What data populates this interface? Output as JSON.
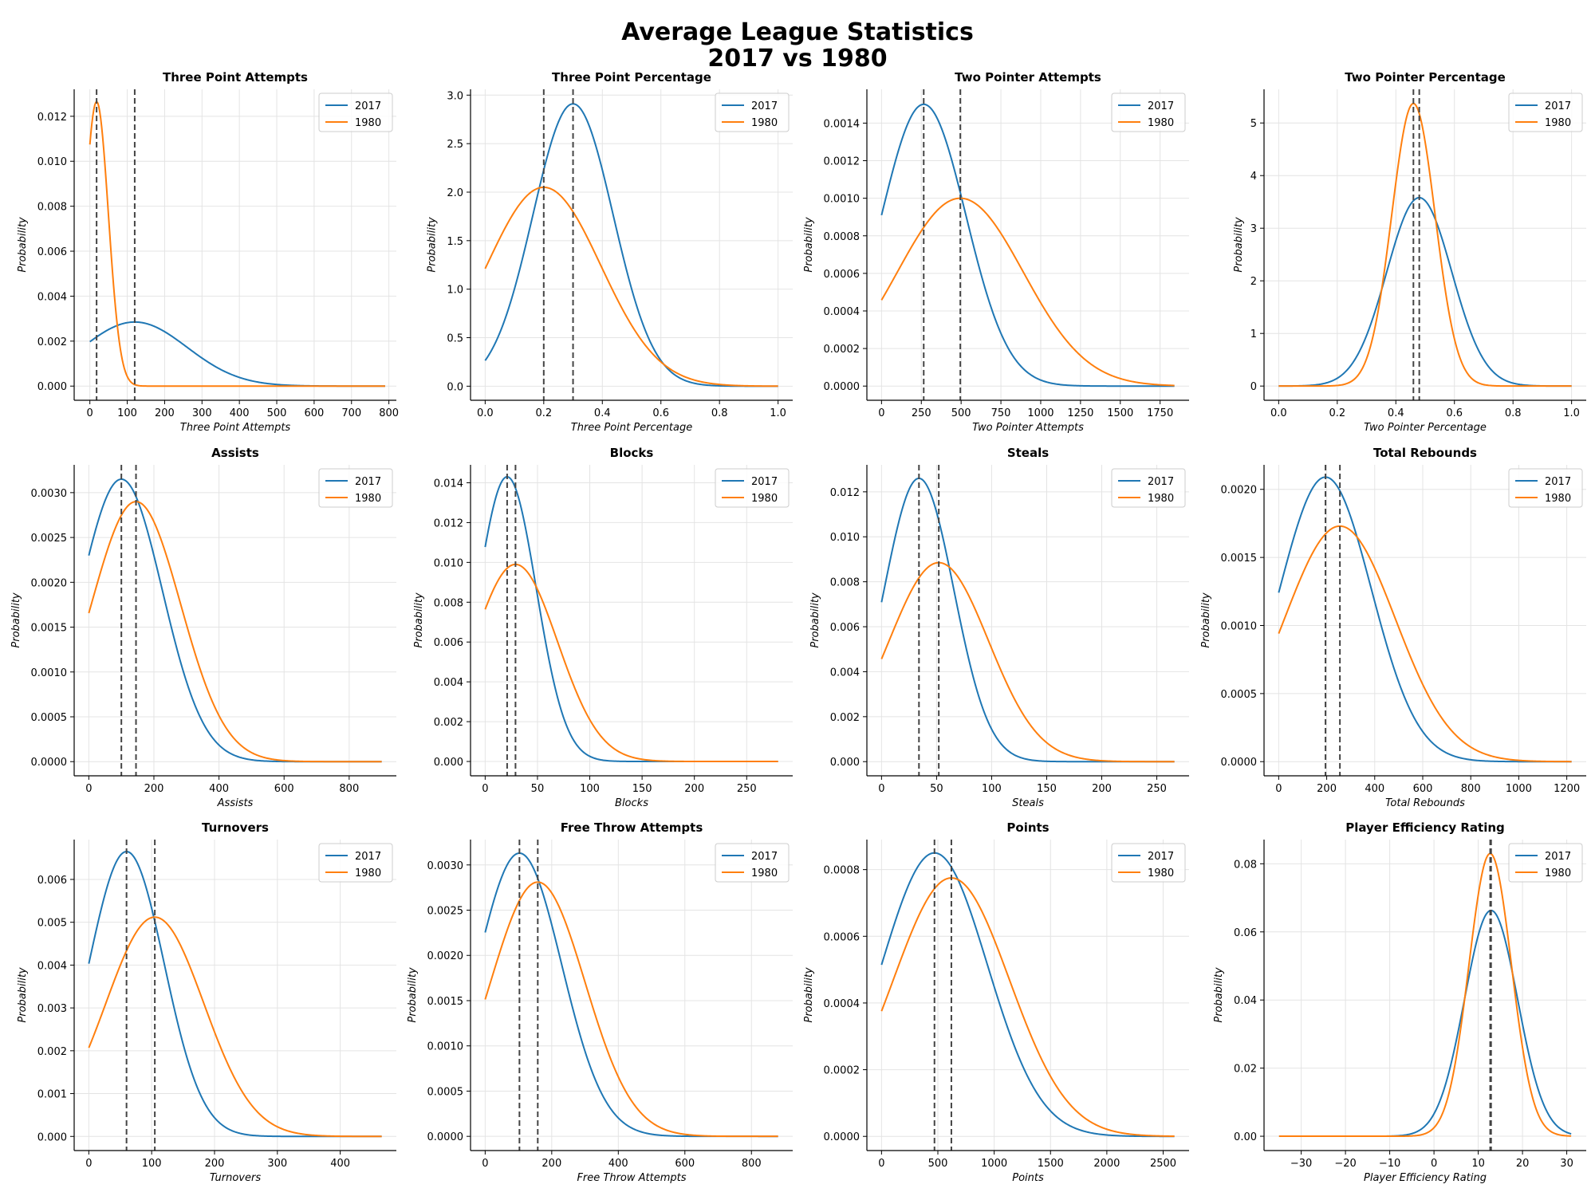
{
  "figure": {
    "title_line1": "Average League Statistics",
    "title_line2": "2017 vs 1980"
  },
  "colors": {
    "2017": "#1f77b4",
    "1980": "#ff7f0e",
    "vline": "#444444",
    "grid": "#e4e4e4"
  },
  "chart_data": [
    {
      "type": "line",
      "title": "Three Point Attempts",
      "xlabel": "Three Point Attempts",
      "ylabel": "Probability",
      "xlim": [
        -42,
        820
      ],
      "ylim": [
        -0.00063,
        0.0132
      ],
      "xticks": [
        0,
        100,
        200,
        300,
        400,
        500,
        600,
        700,
        800
      ],
      "xtick_labels": [
        "0",
        "100",
        "200",
        "300",
        "400",
        "500",
        "600",
        "700",
        "800"
      ],
      "yticks": [
        0,
        0.002,
        0.004,
        0.006,
        0.008,
        0.01,
        0.012
      ],
      "ytick_labels": [
        "0.000",
        "0.002",
        "0.004",
        "0.006",
        "0.008",
        "0.010",
        "0.012"
      ],
      "x_range": [
        0,
        790
      ],
      "series": [
        {
          "name": "2017",
          "distribution": "normal",
          "mean": 120,
          "std": 140,
          "peak": 0.00285
        },
        {
          "name": "1980",
          "distribution": "normal",
          "mean": 18,
          "std": 31.5,
          "peak": 0.01265
        }
      ],
      "mean_lines": [
        120,
        18
      ],
      "legend_loc": "upper right"
    },
    {
      "type": "line",
      "title": "Three Point Percentage",
      "xlabel": "Three Point Percentage",
      "ylabel": "Probability",
      "xlim": [
        -0.05,
        1.05
      ],
      "ylim": [
        -0.145,
        3.06
      ],
      "xticks": [
        0,
        0.2,
        0.4,
        0.6,
        0.8,
        1.0
      ],
      "xtick_labels": [
        "0.0",
        "0.2",
        "0.4",
        "0.6",
        "0.8",
        "1.0"
      ],
      "yticks": [
        0,
        0.5,
        1.0,
        1.5,
        2.0,
        2.5,
        3.0
      ],
      "ytick_labels": [
        "0.0",
        "0.5",
        "1.0",
        "1.5",
        "2.0",
        "2.5",
        "3.0"
      ],
      "x_range": [
        0,
        1
      ],
      "series": [
        {
          "name": "2017",
          "distribution": "normal",
          "mean": 0.3,
          "std": 0.137,
          "peak": 2.91
        },
        {
          "name": "1980",
          "distribution": "normal",
          "mean": 0.2,
          "std": 0.195,
          "peak": 2.05
        }
      ],
      "mean_lines": [
        0.3,
        0.2
      ],
      "legend_loc": "upper right"
    },
    {
      "type": "line",
      "title": "Two Pointer Attempts",
      "xlabel": "Two Pointer Attempts",
      "ylabel": "Probability",
      "xlim": [
        -92,
        1932
      ],
      "ylim": [
        -7.55e-05,
        0.00158
      ],
      "xticks": [
        0,
        250,
        500,
        750,
        1000,
        1250,
        1500,
        1750
      ],
      "xtick_labels": [
        "0",
        "250",
        "500",
        "750",
        "1000",
        "1250",
        "1500",
        "1750"
      ],
      "yticks": [
        0,
        0.0002,
        0.0004,
        0.0006,
        0.0008,
        0.001,
        0.0012,
        0.0014
      ],
      "ytick_labels": [
        "0.0000",
        "0.0002",
        "0.0004",
        "0.0006",
        "0.0008",
        "0.0010",
        "0.0012",
        "0.0014"
      ],
      "x_range": [
        0,
        1840
      ],
      "series": [
        {
          "name": "2017",
          "distribution": "normal",
          "mean": 265,
          "std": 265,
          "peak": 0.0015
        },
        {
          "name": "1980",
          "distribution": "normal",
          "mean": 495,
          "std": 396,
          "peak": 0.001
        }
      ],
      "mean_lines": [
        265,
        495
      ],
      "legend_loc": "upper right"
    },
    {
      "type": "line",
      "title": "Two Pointer Percentage",
      "xlabel": "Two Pointer Percentage",
      "ylabel": "Probability",
      "xlim": [
        -0.05,
        1.05
      ],
      "ylim": [
        -0.27,
        5.64
      ],
      "xticks": [
        0,
        0.2,
        0.4,
        0.6,
        0.8,
        1.0
      ],
      "xtick_labels": [
        "0.0",
        "0.2",
        "0.4",
        "0.6",
        "0.8",
        "1.0"
      ],
      "yticks": [
        0,
        1,
        2,
        3,
        4,
        5
      ],
      "ytick_labels": [
        "0",
        "1",
        "2",
        "3",
        "4",
        "5"
      ],
      "x_range": [
        0,
        1
      ],
      "series": [
        {
          "name": "2017",
          "distribution": "normal",
          "mean": 0.48,
          "std": 0.111,
          "peak": 3.58
        },
        {
          "name": "1980",
          "distribution": "normal",
          "mean": 0.46,
          "std": 0.074,
          "peak": 5.37
        }
      ],
      "mean_lines": [
        0.48,
        0.46
      ],
      "legend_loc": "upper right"
    },
    {
      "type": "line",
      "title": "Assists",
      "xlabel": "Assists",
      "ylabel": "Probability",
      "xlim": [
        -45,
        945
      ],
      "ylim": [
        -0.000158,
        0.00331
      ],
      "xticks": [
        0,
        200,
        400,
        600,
        800
      ],
      "xtick_labels": [
        "0",
        "200",
        "400",
        "600",
        "800"
      ],
      "yticks": [
        0,
        0.0005,
        0.001,
        0.0015,
        0.002,
        0.0025,
        0.003
      ],
      "ytick_labels": [
        "0.0000",
        "0.0005",
        "0.0010",
        "0.0015",
        "0.0020",
        "0.0025",
        "0.0030"
      ],
      "x_range": [
        0,
        900
      ],
      "series": [
        {
          "name": "2017",
          "distribution": "normal",
          "mean": 100,
          "std": 126,
          "peak": 0.00315
        },
        {
          "name": "1980",
          "distribution": "normal",
          "mean": 145,
          "std": 137,
          "peak": 0.0029
        }
      ],
      "mean_lines": [
        100,
        145
      ],
      "legend_loc": "upper right"
    },
    {
      "type": "line",
      "title": "Blocks",
      "xlabel": "Blocks",
      "ylabel": "Probability",
      "xlim": [
        -14,
        294
      ],
      "ylim": [
        -0.00072,
        0.0149
      ],
      "xticks": [
        0,
        50,
        100,
        150,
        200,
        250
      ],
      "xtick_labels": [
        "0",
        "50",
        "100",
        "150",
        "200",
        "250"
      ],
      "yticks": [
        0,
        0.002,
        0.004,
        0.006,
        0.008,
        0.01,
        0.012,
        0.014
      ],
      "ytick_labels": [
        "0.000",
        "0.002",
        "0.004",
        "0.006",
        "0.008",
        "0.010",
        "0.012",
        "0.014"
      ],
      "x_range": [
        0,
        280
      ],
      "series": [
        {
          "name": "2017",
          "distribution": "normal",
          "mean": 21,
          "std": 27.9,
          "peak": 0.0143
        },
        {
          "name": "1980",
          "distribution": "normal",
          "mean": 29,
          "std": 40.3,
          "peak": 0.0099
        }
      ],
      "mean_lines": [
        21,
        29
      ],
      "legend_loc": "upper right"
    },
    {
      "type": "line",
      "title": "Steals",
      "xlabel": "Steals",
      "ylabel": "Probability",
      "xlim": [
        -13.3,
        279.3
      ],
      "ylim": [
        -0.00063,
        0.0132
      ],
      "xticks": [
        0,
        50,
        100,
        150,
        200,
        250
      ],
      "xtick_labels": [
        "0",
        "50",
        "100",
        "150",
        "200",
        "250"
      ],
      "yticks": [
        0,
        0.002,
        0.004,
        0.006,
        0.008,
        0.01,
        0.012
      ],
      "ytick_labels": [
        "0.000",
        "0.002",
        "0.004",
        "0.006",
        "0.008",
        "0.010",
        "0.012"
      ],
      "x_range": [
        0,
        266
      ],
      "series": [
        {
          "name": "2017",
          "distribution": "normal",
          "mean": 34,
          "std": 31.7,
          "peak": 0.0126
        },
        {
          "name": "1980",
          "distribution": "normal",
          "mean": 52,
          "std": 45.2,
          "peak": 0.00885
        }
      ],
      "mean_lines": [
        34,
        52
      ],
      "legend_loc": "upper right"
    },
    {
      "type": "line",
      "title": "Total Rebounds",
      "xlabel": "Total Rebounds",
      "ylabel": "Probability",
      "xlim": [
        -61,
        1281
      ],
      "ylim": [
        -0.000104,
        0.00218
      ],
      "xticks": [
        0,
        200,
        400,
        600,
        800,
        1000,
        1200
      ],
      "xtick_labels": [
        "0",
        "200",
        "400",
        "600",
        "800",
        "1000",
        "1200"
      ],
      "yticks": [
        0,
        0.0005,
        0.001,
        0.0015,
        0.002
      ],
      "ytick_labels": [
        "0.0000",
        "0.0005",
        "0.0010",
        "0.0015",
        "0.0020"
      ],
      "x_range": [
        0,
        1220
      ],
      "series": [
        {
          "name": "2017",
          "distribution": "normal",
          "mean": 195,
          "std": 191,
          "peak": 0.00209
        },
        {
          "name": "1980",
          "distribution": "normal",
          "mean": 255,
          "std": 231,
          "peak": 0.00173
        }
      ],
      "mean_lines": [
        195,
        255
      ],
      "legend_loc": "upper right"
    },
    {
      "type": "line",
      "title": "Turnovers",
      "xlabel": "Turnovers",
      "ylabel": "Probability",
      "xlim": [
        -23.3,
        489.3
      ],
      "ylim": [
        -0.00033,
        0.00693
      ],
      "xticks": [
        0,
        100,
        200,
        300,
        400
      ],
      "xtick_labels": [
        "0",
        "100",
        "200",
        "300",
        "400"
      ],
      "yticks": [
        0,
        0.001,
        0.002,
        0.003,
        0.004,
        0.005,
        0.006
      ],
      "ytick_labels": [
        "0.000",
        "0.001",
        "0.002",
        "0.003",
        "0.004",
        "0.005",
        "0.006"
      ],
      "x_range": [
        0,
        466
      ],
      "series": [
        {
          "name": "2017",
          "distribution": "normal",
          "mean": 60,
          "std": 60,
          "peak": 0.00665
        },
        {
          "name": "1980",
          "distribution": "normal",
          "mean": 105,
          "std": 78,
          "peak": 0.00512
        }
      ],
      "mean_lines": [
        60,
        105
      ],
      "legend_loc": "upper right"
    },
    {
      "type": "line",
      "title": "Free Throw Attempts",
      "xlabel": "Free Throw Attempts",
      "ylabel": "Probability",
      "xlim": [
        -44,
        924
      ],
      "ylim": [
        -0.000157,
        0.00328
      ],
      "xticks": [
        0,
        200,
        400,
        600,
        800
      ],
      "xtick_labels": [
        "0",
        "200",
        "400",
        "600",
        "800"
      ],
      "yticks": [
        0,
        0.0005,
        0.001,
        0.0015,
        0.002,
        0.0025,
        0.003
      ],
      "ytick_labels": [
        "0.0000",
        "0.0005",
        "0.0010",
        "0.0015",
        "0.0020",
        "0.0025",
        "0.0030"
      ],
      "x_range": [
        0,
        880
      ],
      "series": [
        {
          "name": "2017",
          "distribution": "normal",
          "mean": 103,
          "std": 127,
          "peak": 0.00313
        },
        {
          "name": "1980",
          "distribution": "normal",
          "mean": 158,
          "std": 142,
          "peak": 0.00281
        }
      ],
      "mean_lines": [
        103,
        158
      ],
      "legend_loc": "upper right"
    },
    {
      "type": "line",
      "title": "Points",
      "xlabel": "Points",
      "ylabel": "Probability",
      "xlim": [
        -130,
        2730
      ],
      "ylim": [
        -4.25e-05,
        0.00089
      ],
      "xticks": [
        0,
        500,
        1000,
        1500,
        2000,
        2500
      ],
      "xtick_labels": [
        "0",
        "500",
        "1000",
        "1500",
        "2000",
        "2500"
      ],
      "yticks": [
        0,
        0.0002,
        0.0004,
        0.0006,
        0.0008
      ],
      "ytick_labels": [
        "0.0000",
        "0.0002",
        "0.0004",
        "0.0006",
        "0.0008"
      ],
      "x_range": [
        0,
        2600
      ],
      "series": [
        {
          "name": "2017",
          "distribution": "normal",
          "mean": 470,
          "std": 469,
          "peak": 0.00085
        },
        {
          "name": "1980",
          "distribution": "normal",
          "mean": 620,
          "std": 515,
          "peak": 0.000775
        }
      ],
      "mean_lines": [
        470,
        620
      ],
      "legend_loc": "upper right"
    },
    {
      "type": "line",
      "title": "Player Efficiency Rating",
      "xlabel": "Player Efficiency Rating",
      "ylabel": "Probability",
      "xlim": [
        -38.4,
        34.4
      ],
      "ylim": [
        -0.0042,
        0.0871
      ],
      "xticks": [
        -30,
        -20,
        -10,
        0,
        10,
        20,
        30
      ],
      "xtick_labels": [
        "−30",
        "−20",
        "−10",
        "0",
        "10",
        "20",
        "30"
      ],
      "yticks": [
        0,
        0.02,
        0.04,
        0.06,
        0.08
      ],
      "ytick_labels": [
        "0.00",
        "0.02",
        "0.04",
        "0.06",
        "0.08"
      ],
      "x_range": [
        -35,
        31
      ],
      "series": [
        {
          "name": "2017",
          "distribution": "normal",
          "mean": 12.9,
          "std": 6.0,
          "peak": 0.0663
        },
        {
          "name": "1980",
          "distribution": "normal",
          "mean": 12.7,
          "std": 4.8,
          "peak": 0.083
        }
      ],
      "mean_lines": [
        12.9,
        12.7
      ],
      "legend_loc": "upper right"
    }
  ]
}
